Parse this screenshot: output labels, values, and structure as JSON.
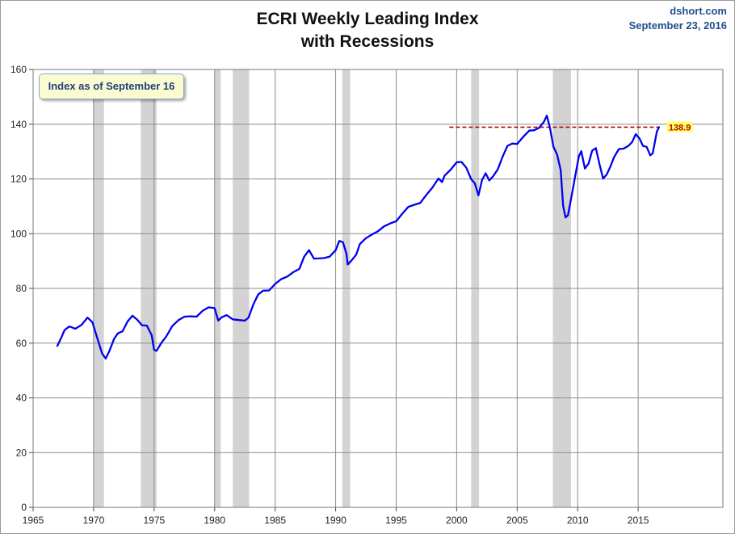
{
  "header": {
    "title_line1": "ECRI Weekly Leading Index",
    "title_line2": "with Recessions",
    "credit_site": "dshort.com",
    "credit_date": "September 23, 2016"
  },
  "note": "Index as of September 16",
  "colors": {
    "series": "#0000ee",
    "recession": "#d3d3d3",
    "reference_line": "#c00000",
    "label_bg": "#ffff66",
    "grid": "#8c8c8c"
  },
  "chart_data": {
    "type": "line",
    "title": "ECRI Weekly Leading Index with Recessions",
    "xlabel": "",
    "ylabel": "",
    "xlim": [
      1965,
      2022
    ],
    "ylim": [
      0,
      160
    ],
    "x_ticks": [
      "1965",
      "1970",
      "1975",
      "1980",
      "1985",
      "1990",
      "1995",
      "2000",
      "2005",
      "2010",
      "2015"
    ],
    "y_ticks": [
      "0",
      "20",
      "40",
      "60",
      "80",
      "100",
      "120",
      "140",
      "160"
    ],
    "grid": true,
    "recessions": [
      [
        1969.95,
        1970.85
      ],
      [
        1973.9,
        1975.2
      ],
      [
        1980.0,
        1980.5
      ],
      [
        1981.5,
        1982.85
      ],
      [
        1990.55,
        1991.2
      ],
      [
        2001.2,
        2001.85
      ],
      [
        2007.95,
        2009.45
      ]
    ],
    "reference_line": {
      "value": 138.9,
      "from": 1999.4,
      "to": 2016.7,
      "label": "138.9"
    },
    "series": [
      {
        "values": [
          [
            1967.0,
            59
          ],
          [
            1967.3,
            61
          ],
          [
            1967.6,
            64
          ],
          [
            1968.0,
            66
          ],
          [
            1968.5,
            66
          ],
          [
            1969.0,
            67.5
          ],
          [
            1969.5,
            69.5
          ],
          [
            1969.9,
            67
          ],
          [
            1970.3,
            61
          ],
          [
            1970.7,
            56
          ],
          [
            1971.0,
            55
          ],
          [
            1971.3,
            58
          ],
          [
            1971.7,
            62
          ],
          [
            1972.0,
            63
          ],
          [
            1972.4,
            63.5
          ],
          [
            1972.8,
            67.5
          ],
          [
            1973.2,
            70.5
          ],
          [
            1973.6,
            69.5
          ],
          [
            1974.0,
            67
          ],
          [
            1974.4,
            66
          ],
          [
            1974.8,
            62
          ],
          [
            1975.0,
            57
          ],
          [
            1975.2,
            57.5
          ],
          [
            1975.6,
            61
          ],
          [
            1976.0,
            63
          ],
          [
            1976.5,
            66
          ],
          [
            1977.0,
            67.5
          ],
          [
            1977.5,
            69
          ],
          [
            1978.0,
            70
          ],
          [
            1978.5,
            70.5
          ],
          [
            1979.0,
            72.5
          ],
          [
            1979.5,
            73
          ],
          [
            1980.0,
            72
          ],
          [
            1980.3,
            67.5
          ],
          [
            1980.6,
            69.5
          ],
          [
            1981.0,
            71
          ],
          [
            1981.5,
            69.5
          ],
          [
            1982.0,
            68.5
          ],
          [
            1982.5,
            67.5
          ],
          [
            1982.8,
            68.5
          ],
          [
            1983.2,
            74
          ],
          [
            1983.6,
            78.5
          ],
          [
            1984.0,
            80
          ],
          [
            1984.5,
            79.5
          ],
          [
            1985.0,
            81
          ],
          [
            1985.5,
            82.5
          ],
          [
            1986.0,
            84
          ],
          [
            1986.5,
            86.5
          ],
          [
            1987.0,
            88
          ],
          [
            1987.4,
            92
          ],
          [
            1987.8,
            93.5
          ],
          [
            1988.2,
            90
          ],
          [
            1988.6,
            90.5
          ],
          [
            1989.0,
            91.5
          ],
          [
            1989.5,
            92.5
          ],
          [
            1990.0,
            94.5
          ],
          [
            1990.3,
            97
          ],
          [
            1990.6,
            96
          ],
          [
            1990.9,
            92
          ],
          [
            1991.0,
            89
          ],
          [
            1991.3,
            91
          ],
          [
            1991.7,
            93
          ],
          [
            1992.0,
            96
          ],
          [
            1992.5,
            97.5
          ],
          [
            1993.0,
            99
          ],
          [
            1993.5,
            101
          ],
          [
            1994.0,
            103.5
          ],
          [
            1994.5,
            104.5
          ],
          [
            1995.0,
            104.5
          ],
          [
            1995.5,
            106.5
          ],
          [
            1996.0,
            109
          ],
          [
            1996.5,
            110.5
          ],
          [
            1997.0,
            112
          ],
          [
            1997.5,
            115
          ],
          [
            1998.0,
            117
          ],
          [
            1998.5,
            119.5
          ],
          [
            1998.8,
            118
          ],
          [
            1999.0,
            121
          ],
          [
            1999.5,
            124
          ],
          [
            2000.0,
            127
          ],
          [
            2000.4,
            126.5
          ],
          [
            2000.8,
            123.5
          ],
          [
            2001.2,
            119
          ],
          [
            2001.5,
            118
          ],
          [
            2001.8,
            114.5
          ],
          [
            2002.1,
            120.5
          ],
          [
            2002.4,
            122.5
          ],
          [
            2002.7,
            119
          ],
          [
            2003.0,
            120
          ],
          [
            2003.4,
            123
          ],
          [
            2003.8,
            128.5
          ],
          [
            2004.2,
            133
          ],
          [
            2004.6,
            133.5
          ],
          [
            2005.0,
            132.5
          ],
          [
            2005.5,
            134.5
          ],
          [
            2006.0,
            137
          ],
          [
            2006.4,
            138
          ],
          [
            2006.8,
            139.5
          ],
          [
            2007.2,
            141.5
          ],
          [
            2007.45,
            143
          ],
          [
            2007.7,
            138
          ],
          [
            2008.0,
            131
          ],
          [
            2008.3,
            129
          ],
          [
            2008.6,
            124
          ],
          [
            2008.8,
            111
          ],
          [
            2009.0,
            106
          ],
          [
            2009.2,
            106
          ],
          [
            2009.5,
            113
          ],
          [
            2009.8,
            121
          ],
          [
            2010.1,
            129
          ],
          [
            2010.3,
            131
          ],
          [
            2010.6,
            124
          ],
          [
            2010.9,
            125
          ],
          [
            2011.2,
            129.5
          ],
          [
            2011.5,
            131
          ],
          [
            2011.8,
            126
          ],
          [
            2012.1,
            121
          ],
          [
            2012.4,
            122
          ],
          [
            2012.7,
            124
          ],
          [
            2013.0,
            127
          ],
          [
            2013.4,
            130.5
          ],
          [
            2013.8,
            131.5
          ],
          [
            2014.2,
            133
          ],
          [
            2014.5,
            134
          ],
          [
            2014.8,
            136
          ],
          [
            2015.1,
            134
          ],
          [
            2015.4,
            131.5
          ],
          [
            2015.7,
            132
          ],
          [
            2016.0,
            129.5
          ],
          [
            2016.2,
            130
          ],
          [
            2016.35,
            132.5
          ],
          [
            2016.55,
            136.5
          ],
          [
            2016.72,
            138.9
          ]
        ]
      }
    ]
  }
}
